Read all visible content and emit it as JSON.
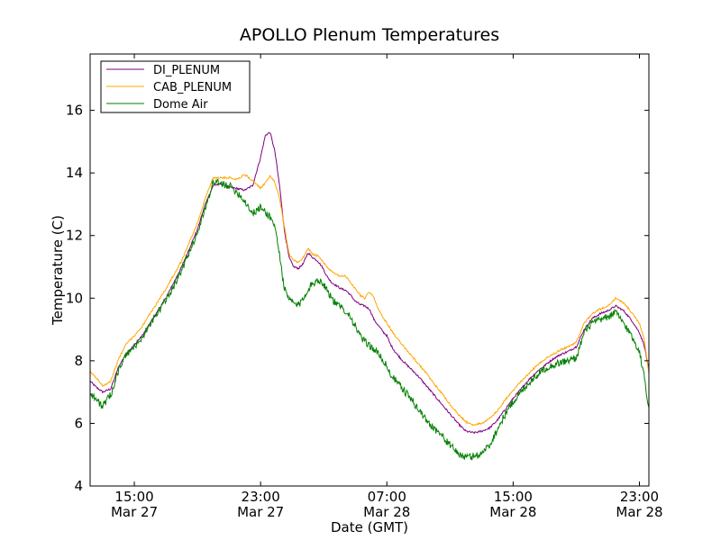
{
  "chart_data": {
    "type": "line",
    "title": "APOLLO Plenum Temperatures",
    "xlabel": "Date (GMT)",
    "ylabel": "Temperature (C)",
    "x_unit": "hours since Mar 27 00:00 GMT",
    "xlim": [
      12.2,
      47.6
    ],
    "ylim": [
      4,
      17.8
    ],
    "yticks": [
      4,
      6,
      8,
      10,
      12,
      14,
      16
    ],
    "xticks": [
      {
        "at": 15,
        "line1": "15:00",
        "line2": "Mar 27"
      },
      {
        "at": 23,
        "line1": "23:00",
        "line2": "Mar 27"
      },
      {
        "at": 31,
        "line1": "07:00",
        "line2": "Mar 28"
      },
      {
        "at": 39,
        "line1": "15:00",
        "line2": "Mar 28"
      },
      {
        "at": 47,
        "line1": "23:00",
        "line2": "Mar 28"
      }
    ],
    "legend": {
      "position": "top-left"
    },
    "series": [
      {
        "name": "DI_PLENUM",
        "color": "#800080",
        "noise": 0.03,
        "x": [
          12.2,
          12.6,
          13.0,
          13.5,
          14.0,
          14.5,
          15.0,
          15.5,
          16.0,
          16.5,
          17.0,
          17.5,
          18.0,
          18.5,
          19.0,
          19.5,
          20.0,
          20.5,
          21.0,
          21.5,
          22.0,
          22.5,
          23.0,
          23.3,
          23.6,
          23.9,
          24.2,
          24.5,
          24.8,
          25.1,
          25.4,
          25.7,
          26.0,
          26.3,
          26.6,
          26.9,
          27.2,
          27.5,
          27.8,
          28.1,
          28.4,
          28.7,
          29.0,
          29.3,
          29.6,
          29.9,
          30.2,
          30.5,
          30.8,
          31.0,
          31.2,
          31.5,
          32.0,
          32.5,
          33.0,
          33.5,
          34.0,
          34.5,
          35.0,
          35.5,
          36.0,
          36.5,
          37.0,
          37.5,
          38.0,
          38.5,
          39.0,
          39.5,
          40.0,
          40.5,
          41.0,
          41.5,
          42.0,
          42.5,
          43.0,
          43.5,
          44.0,
          44.5,
          45.0,
          45.5,
          46.0,
          46.5,
          47.0,
          47.3,
          47.6
        ],
        "values": [
          7.35,
          7.15,
          7.0,
          7.1,
          7.8,
          8.25,
          8.5,
          8.8,
          9.2,
          9.6,
          10.0,
          10.5,
          11.0,
          11.6,
          12.2,
          13.0,
          13.6,
          13.65,
          13.55,
          13.5,
          13.45,
          13.6,
          14.5,
          15.2,
          15.3,
          14.7,
          13.6,
          12.2,
          11.3,
          11.0,
          10.95,
          11.1,
          11.45,
          11.3,
          11.2,
          11.0,
          10.7,
          10.5,
          10.4,
          10.3,
          10.25,
          10.1,
          9.9,
          9.8,
          9.75,
          9.65,
          9.3,
          9.1,
          8.9,
          8.8,
          8.55,
          8.3,
          8.0,
          7.75,
          7.5,
          7.2,
          6.9,
          6.6,
          6.3,
          6.0,
          5.75,
          5.7,
          5.75,
          5.85,
          6.1,
          6.45,
          6.8,
          7.1,
          7.4,
          7.65,
          7.85,
          8.05,
          8.2,
          8.3,
          8.45,
          9.0,
          9.35,
          9.5,
          9.6,
          9.75,
          9.6,
          9.3,
          8.9,
          8.5,
          7.7
        ]
      },
      {
        "name": "CAB_PLENUM",
        "color": "#ffa500",
        "noise": 0.03,
        "x": [
          12.2,
          12.6,
          13.0,
          13.5,
          14.0,
          14.5,
          15.0,
          15.5,
          16.0,
          16.5,
          17.0,
          17.5,
          18.0,
          18.5,
          19.0,
          19.5,
          20.0,
          20.5,
          21.0,
          21.5,
          22.0,
          22.5,
          23.0,
          23.3,
          23.6,
          23.9,
          24.2,
          24.5,
          24.8,
          25.1,
          25.4,
          25.7,
          26.0,
          26.3,
          26.6,
          26.9,
          27.2,
          27.5,
          27.8,
          28.1,
          28.4,
          28.7,
          29.0,
          29.3,
          29.6,
          29.9,
          30.2,
          30.5,
          30.8,
          31.0,
          31.2,
          31.5,
          32.0,
          32.5,
          33.0,
          33.5,
          34.0,
          34.5,
          35.0,
          35.5,
          36.0,
          36.5,
          37.0,
          37.5,
          38.0,
          38.5,
          39.0,
          39.5,
          40.0,
          40.5,
          41.0,
          41.5,
          42.0,
          42.5,
          43.0,
          43.5,
          44.0,
          44.5,
          45.0,
          45.5,
          46.0,
          46.5,
          47.0,
          47.3,
          47.6
        ],
        "values": [
          7.65,
          7.45,
          7.2,
          7.35,
          8.05,
          8.55,
          8.8,
          9.1,
          9.5,
          9.9,
          10.3,
          10.75,
          11.2,
          11.8,
          12.4,
          13.2,
          13.85,
          13.85,
          13.85,
          13.8,
          13.95,
          13.75,
          13.5,
          13.7,
          13.9,
          13.7,
          13.2,
          12.3,
          11.4,
          11.2,
          11.15,
          11.3,
          11.6,
          11.4,
          11.35,
          11.2,
          11.0,
          10.85,
          10.75,
          10.7,
          10.7,
          10.5,
          10.3,
          10.1,
          10.0,
          10.2,
          10.0,
          9.6,
          9.35,
          9.2,
          9.05,
          8.8,
          8.5,
          8.2,
          7.9,
          7.6,
          7.25,
          6.95,
          6.6,
          6.3,
          6.05,
          5.95,
          6.0,
          6.15,
          6.4,
          6.75,
          7.05,
          7.35,
          7.6,
          7.85,
          8.05,
          8.2,
          8.35,
          8.45,
          8.6,
          9.2,
          9.5,
          9.65,
          9.75,
          10.0,
          9.85,
          9.55,
          9.2,
          8.7,
          7.6
        ]
      },
      {
        "name": "Dome Air",
        "color": "#007f00",
        "noise": 0.12,
        "x": [
          12.2,
          12.6,
          13.0,
          13.5,
          14.0,
          14.5,
          15.0,
          15.5,
          16.0,
          16.5,
          17.0,
          17.5,
          18.0,
          18.5,
          19.0,
          19.5,
          20.0,
          20.5,
          21.0,
          21.5,
          22.0,
          22.5,
          23.0,
          23.3,
          23.6,
          23.9,
          24.2,
          24.5,
          24.8,
          25.1,
          25.4,
          25.7,
          26.0,
          26.3,
          26.6,
          26.9,
          27.2,
          27.5,
          27.8,
          28.1,
          28.4,
          28.7,
          29.0,
          29.3,
          29.6,
          29.9,
          30.2,
          30.5,
          30.8,
          31.0,
          31.2,
          31.5,
          32.0,
          32.5,
          33.0,
          33.5,
          34.0,
          34.5,
          35.0,
          35.5,
          36.0,
          36.5,
          37.0,
          37.5,
          38.0,
          38.5,
          39.0,
          39.5,
          40.0,
          40.5,
          41.0,
          41.5,
          42.0,
          42.5,
          43.0,
          43.5,
          44.0,
          44.5,
          45.0,
          45.5,
          46.0,
          46.5,
          47.0,
          47.3,
          47.6
        ],
        "values": [
          7.0,
          6.75,
          6.55,
          6.9,
          7.7,
          8.2,
          8.45,
          8.75,
          9.15,
          9.55,
          9.95,
          10.4,
          10.9,
          11.5,
          12.1,
          12.9,
          13.7,
          13.65,
          13.6,
          13.4,
          13.1,
          12.7,
          12.9,
          12.75,
          12.6,
          12.3,
          11.4,
          10.3,
          9.95,
          9.85,
          9.75,
          10.0,
          10.3,
          10.45,
          10.6,
          10.5,
          10.3,
          10.0,
          9.8,
          9.7,
          9.6,
          9.4,
          9.1,
          8.8,
          8.6,
          8.5,
          8.35,
          8.2,
          8.0,
          7.8,
          7.6,
          7.4,
          7.1,
          6.8,
          6.45,
          6.1,
          5.85,
          5.6,
          5.3,
          5.05,
          4.9,
          4.95,
          5.05,
          5.3,
          5.8,
          6.3,
          6.7,
          7.0,
          7.3,
          7.55,
          7.75,
          7.85,
          7.95,
          8.0,
          8.1,
          8.9,
          9.2,
          9.3,
          9.4,
          9.55,
          9.2,
          8.8,
          8.3,
          7.5,
          6.5
        ]
      }
    ]
  }
}
